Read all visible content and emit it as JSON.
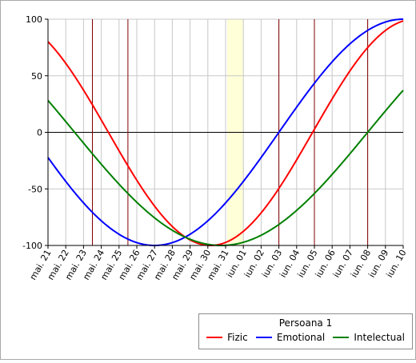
{
  "chart_data": {
    "type": "line",
    "title": "",
    "xlabel": "",
    "ylabel": "",
    "ylim": [
      -100,
      100
    ],
    "yticks": [
      100,
      50,
      0,
      -50,
      -100
    ],
    "categories": [
      "mai. 21",
      "mai. 22",
      "mai. 23",
      "mai. 24",
      "mai. 25",
      "mai. 26",
      "mai. 27",
      "mai. 28",
      "mai. 29",
      "mai. 30",
      "mai. 31",
      "iun. 01",
      "iun. 02",
      "iun. 03",
      "iun. 04",
      "iun. 05",
      "iun. 06",
      "iun. 07",
      "iun. 08",
      "iun. 09",
      "iun. 10"
    ],
    "grid": true,
    "highlight": {
      "category": "mai. 31",
      "color": "#ffffd8"
    },
    "marker_lines": {
      "color": "#800000",
      "at_days": [
        2.5,
        4.5,
        13.0,
        15.0,
        18.0
      ]
    },
    "zero_line": true,
    "legend": {
      "title": "Persoana 1",
      "placement": "bottom-right"
    },
    "series": [
      {
        "name": "Fizic",
        "color": "#ff0000",
        "period": 23,
        "phase_day": 14.9
      },
      {
        "name": "Emotional",
        "color": "#0000ff",
        "period": 28,
        "phase_day": 13.0
      },
      {
        "name": "Intelectual",
        "color": "#008000",
        "period": 33,
        "phase_day": 18.0
      }
    ]
  }
}
